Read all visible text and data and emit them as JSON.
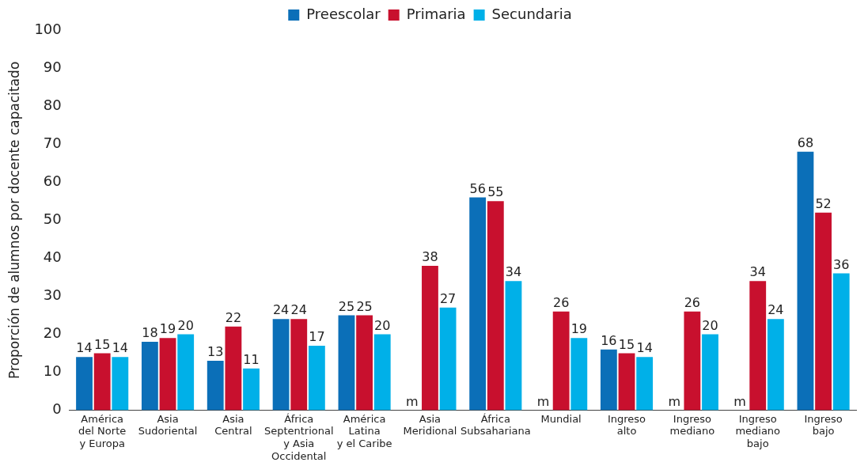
{
  "chart_data": {
    "type": "bar",
    "ylabel": "Proporción de alumnos por docente capacitado",
    "categories": [
      "América\ndel Norte\ny Europa",
      "Asia\nSudoriental",
      "Asia\nCentral",
      "África\nSeptentrional\ny Asia\nOccidental",
      "América\nLatina\ny el Caribe",
      "Asia\nMeridional",
      "África\nSubsahariana",
      "Mundial",
      "Ingreso\nalto",
      "Ingreso\nmediano",
      "Ingreso\nmediano\nbajo",
      "Ingreso\nbajo"
    ],
    "series": [
      {
        "name": "Preescolar",
        "color": "#0b6fb8",
        "values": [
          14,
          18,
          13,
          24,
          25,
          null,
          56,
          null,
          16,
          null,
          null,
          68
        ],
        "value_labels": [
          "14",
          "18",
          "13",
          "24",
          "25",
          "m",
          "56",
          "m",
          "16",
          "m",
          "m",
          "68"
        ]
      },
      {
        "name": "Primaria",
        "color": "#c8102e",
        "values": [
          15,
          19,
          22,
          24,
          25,
          38,
          55,
          26,
          15,
          26,
          34,
          52
        ],
        "value_labels": [
          "15",
          "19",
          "22",
          "24",
          "25",
          "38",
          "55",
          "26",
          "15",
          "26",
          "34",
          "52"
        ]
      },
      {
        "name": "Secundaria",
        "color": "#00b0e8",
        "values": [
          14,
          20,
          11,
          17,
          20,
          27,
          34,
          19,
          14,
          20,
          24,
          36
        ],
        "value_labels": [
          "14",
          "20",
          "11",
          "17",
          "20",
          "27",
          "34",
          "19",
          "14",
          "20",
          "24",
          "36"
        ]
      }
    ],
    "ylim": [
      0,
      100
    ],
    "yticks": [
      0,
      10,
      20,
      30,
      40,
      50,
      60,
      70,
      80,
      90,
      100
    ],
    "grid": false,
    "legend": "top"
  }
}
